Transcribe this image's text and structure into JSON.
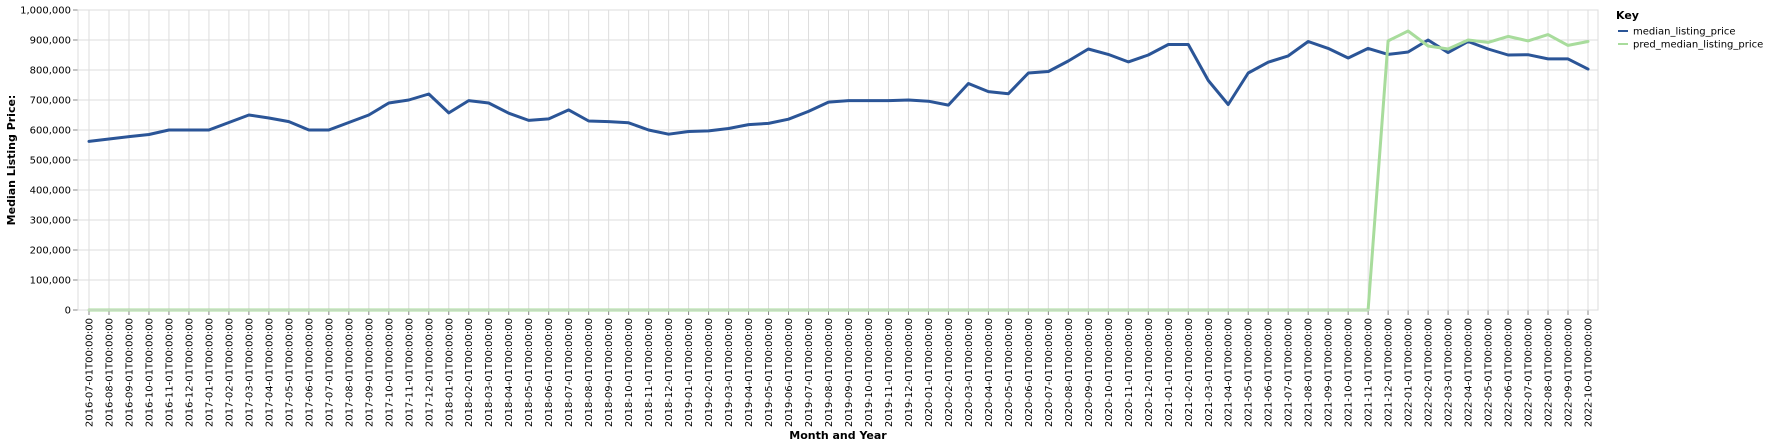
{
  "chart_data": {
    "type": "line",
    "xlabel": "Month and Year",
    "ylabel": "Median Listing Price:",
    "ylim": [
      0,
      1000000
    ],
    "yticks": [
      "0",
      "100,000",
      "200,000",
      "300,000",
      "400,000",
      "500,000",
      "600,000",
      "700,000",
      "800,000",
      "900,000",
      "1,000,000"
    ],
    "grid": true,
    "legend": {
      "title": "Key",
      "placement": "right"
    },
    "categories": [
      "2016-07-01T00:00:00",
      "2016-08-01T00:00:00",
      "2016-09-01T00:00:00",
      "2016-10-01T00:00:00",
      "2016-11-01T00:00:00",
      "2016-12-01T00:00:00",
      "2017-01-01T00:00:00",
      "2017-02-01T00:00:00",
      "2017-03-01T00:00:00",
      "2017-04-01T00:00:00",
      "2017-05-01T00:00:00",
      "2017-06-01T00:00:00",
      "2017-07-01T00:00:00",
      "2017-08-01T00:00:00",
      "2017-09-01T00:00:00",
      "2017-10-01T00:00:00",
      "2017-11-01T00:00:00",
      "2017-12-01T00:00:00",
      "2018-01-01T00:00:00",
      "2018-02-01T00:00:00",
      "2018-03-01T00:00:00",
      "2018-04-01T00:00:00",
      "2018-05-01T00:00:00",
      "2018-06-01T00:00:00",
      "2018-07-01T00:00:00",
      "2018-08-01T00:00:00",
      "2018-09-01T00:00:00",
      "2018-10-01T00:00:00",
      "2018-11-01T00:00:00",
      "2018-12-01T00:00:00",
      "2019-01-01T00:00:00",
      "2019-02-01T00:00:00",
      "2019-03-01T00:00:00",
      "2019-04-01T00:00:00",
      "2019-05-01T00:00:00",
      "2019-06-01T00:00:00",
      "2019-07-01T00:00:00",
      "2019-08-01T00:00:00",
      "2019-09-01T00:00:00",
      "2019-10-01T00:00:00",
      "2019-11-01T00:00:00",
      "2019-12-01T00:00:00",
      "2020-01-01T00:00:00",
      "2020-02-01T00:00:00",
      "2020-03-01T00:00:00",
      "2020-04-01T00:00:00",
      "2020-05-01T00:00:00",
      "2020-06-01T00:00:00",
      "2020-07-01T00:00:00",
      "2020-08-01T00:00:00",
      "2020-09-01T00:00:00",
      "2020-10-01T00:00:00",
      "2020-11-01T00:00:00",
      "2020-12-01T00:00:00",
      "2021-01-01T00:00:00",
      "2021-02-01T00:00:00",
      "2021-03-01T00:00:00",
      "2021-04-01T00:00:00",
      "2021-05-01T00:00:00",
      "2021-06-01T00:00:00",
      "2021-07-01T00:00:00",
      "2021-08-01T00:00:00",
      "2021-09-01T00:00:00",
      "2021-10-01T00:00:00",
      "2021-11-01T00:00:00",
      "2021-12-01T00:00:00",
      "2022-01-01T00:00:00",
      "2022-02-01T00:00:00",
      "2022-03-01T00:00:00",
      "2022-04-01T00:00:00",
      "2022-05-01T00:00:00",
      "2022-06-01T00:00:00",
      "2022-07-01T00:00:00",
      "2022-08-01T00:00:00",
      "2022-09-01T00:00:00",
      "2022-10-01T00:00:00"
    ],
    "series": [
      {
        "name": "median_listing_price",
        "color": "#2b5597",
        "values": [
          562000,
          570000,
          578000,
          585000,
          600000,
          600000,
          600000,
          625000,
          650000,
          640000,
          628000,
          600000,
          600000,
          625000,
          650000,
          690000,
          700000,
          720000,
          657000,
          698000,
          690000,
          656000,
          632000,
          637000,
          667000,
          630000,
          628000,
          624000,
          600000,
          586000,
          595000,
          597000,
          605000,
          618000,
          622000,
          636000,
          662000,
          693000,
          698000,
          698000,
          698000,
          700000,
          696000,
          683000,
          755000,
          728000,
          721000,
          790000,
          795000,
          830000,
          870000,
          852000,
          827000,
          850000,
          885000,
          885000,
          765000,
          685000,
          790000,
          826000,
          847000,
          895000,
          872000,
          840000,
          872000,
          852000,
          860000,
          900000,
          858000,
          895000,
          870000,
          850000,
          851000,
          837000,
          837000,
          803000
        ]
      },
      {
        "name": "pred_median_listing_price",
        "color": "#a8dc9c",
        "values": [
          0,
          0,
          0,
          0,
          0,
          0,
          0,
          0,
          0,
          0,
          0,
          0,
          0,
          0,
          0,
          0,
          0,
          0,
          0,
          0,
          0,
          0,
          0,
          0,
          0,
          0,
          0,
          0,
          0,
          0,
          0,
          0,
          0,
          0,
          0,
          0,
          0,
          0,
          0,
          0,
          0,
          0,
          0,
          0,
          0,
          0,
          0,
          0,
          0,
          0,
          0,
          0,
          0,
          0,
          0,
          0,
          0,
          0,
          0,
          0,
          0,
          0,
          0,
          0,
          0,
          897000,
          930000,
          880000,
          870000,
          900000,
          892000,
          912000,
          897000,
          918000,
          882000,
          895000
        ]
      }
    ]
  }
}
